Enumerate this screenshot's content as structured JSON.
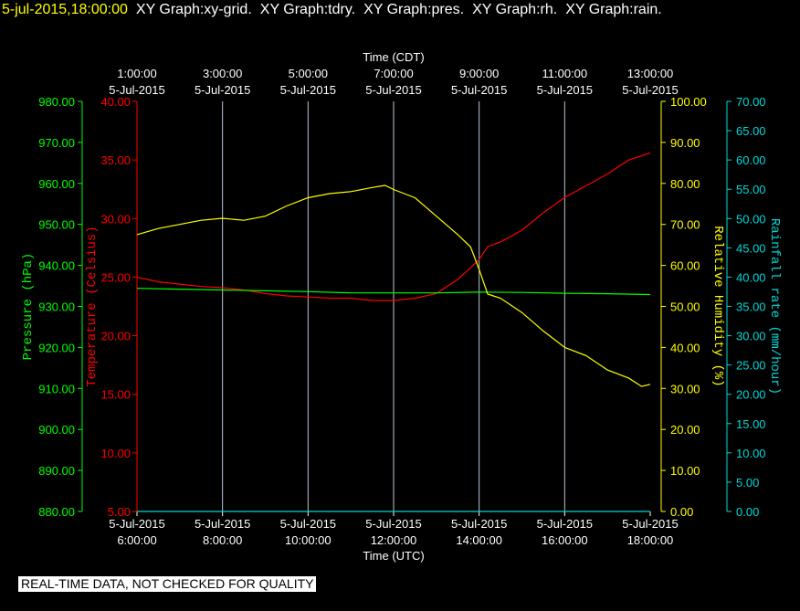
{
  "title_bar": {
    "timestamp": "5-jul-2015,18:00:00",
    "items": [
      "XY Graph:xy-grid.",
      "XY Graph:tdry.",
      "XY Graph:pres.",
      "XY Graph:rh.",
      "XY Graph:rain."
    ]
  },
  "colors": {
    "background": "#000000",
    "timestamp": "#ffff00",
    "title": "#ffffff",
    "grid": "#b8c8d8",
    "pressure": "#00ff00",
    "temperature": "#ff0000",
    "humidity": "#ffff00",
    "rain": "#00d8d8"
  },
  "disclaimer": "REAL-TIME DATA, NOT CHECKED FOR QUALITY",
  "chart_data": {
    "type": "line",
    "grid": true,
    "x_top": {
      "label": "Time (CDT)",
      "ticks": [
        {
          "t": "1:00:00",
          "d": "5-Jul-2015"
        },
        {
          "t": "3:00:00",
          "d": "5-Jul-2015"
        },
        {
          "t": "5:00:00",
          "d": "5-Jul-2015"
        },
        {
          "t": "7:00:00",
          "d": "5-Jul-2015"
        },
        {
          "t": "9:00:00",
          "d": "5-Jul-2015"
        },
        {
          "t": "11:00:00",
          "d": "5-Jul-2015"
        },
        {
          "t": "13:00:00",
          "d": "5-Jul-2015"
        }
      ]
    },
    "x_bottom": {
      "label": "Time (UTC)",
      "ticks": [
        {
          "d": "5-Jul-2015",
          "t": "6:00:00"
        },
        {
          "d": "5-Jul-2015",
          "t": "8:00:00"
        },
        {
          "d": "5-Jul-2015",
          "t": "10:00:00"
        },
        {
          "d": "5-Jul-2015",
          "t": "12:00:00"
        },
        {
          "d": "5-Jul-2015",
          "t": "14:00:00"
        },
        {
          "d": "5-Jul-2015",
          "t": "16:00:00"
        },
        {
          "d": "5-Jul-2015",
          "t": "18:00:00"
        }
      ]
    },
    "xlim_hours_utc": [
      6,
      18
    ],
    "axes": {
      "pressure": {
        "label": "Pressure (hPa)",
        "ylim": [
          880,
          980
        ],
        "ticks": [
          "880.00",
          "890.00",
          "900.00",
          "910.00",
          "920.00",
          "930.00",
          "940.00",
          "950.00",
          "960.00",
          "970.00",
          "980.00"
        ]
      },
      "temperature": {
        "label": "Temperature (Celsius)",
        "ylim": [
          5,
          40
        ],
        "ticks": [
          "5.00",
          "10.00",
          "15.00",
          "20.00",
          "25.00",
          "30.00",
          "35.00",
          "40.00"
        ]
      },
      "humidity": {
        "label": "Relative Humidity (%)",
        "ylim": [
          0,
          100
        ],
        "ticks": [
          "0.00",
          "10.00",
          "20.00",
          "30.00",
          "40.00",
          "50.00",
          "60.00",
          "70.00",
          "80.00",
          "90.00",
          "100.00"
        ]
      },
      "rain": {
        "label": "Rainfall rate (mm/hour)",
        "ylim": [
          0,
          70
        ],
        "ticks": [
          "0.00",
          "5.00",
          "10.00",
          "15.00",
          "20.00",
          "25.00",
          "30.00",
          "35.00",
          "40.00",
          "45.00",
          "50.00",
          "55.00",
          "60.00",
          "65.00",
          "70.00"
        ]
      }
    },
    "series": [
      {
        "axis": "temperature",
        "x": [
          6,
          6.5,
          7,
          7.5,
          8,
          8.5,
          9,
          9.5,
          10,
          10.5,
          11,
          11.5,
          12,
          12.5,
          13,
          13.5,
          14,
          14.2,
          14.5,
          15,
          15.5,
          16,
          16.5,
          17,
          17.5,
          18
        ],
        "values": [
          25.0,
          24.6,
          24.4,
          24.2,
          24.1,
          23.9,
          23.6,
          23.4,
          23.3,
          23.2,
          23.2,
          23.0,
          23.0,
          23.2,
          23.6,
          24.8,
          26.5,
          27.6,
          28.0,
          29.0,
          30.5,
          31.8,
          32.8,
          33.8,
          35.0,
          35.6
        ]
      },
      {
        "axis": "pressure",
        "x": [
          6,
          7,
          8,
          9,
          10,
          11,
          12,
          13,
          14,
          15,
          16,
          17,
          18
        ],
        "values": [
          934.4,
          934.2,
          934.0,
          933.8,
          933.6,
          933.3,
          933.3,
          933.3,
          933.5,
          933.4,
          933.2,
          933.1,
          932.9
        ]
      },
      {
        "axis": "humidity",
        "x": [
          6,
          6.5,
          7,
          7.5,
          8,
          8.5,
          9,
          9.5,
          10,
          10.5,
          11,
          11.5,
          11.8,
          12,
          12.5,
          13,
          13.5,
          13.8,
          14,
          14.2,
          14.5,
          15,
          15.5,
          16,
          16.5,
          17,
          17.5,
          17.8,
          18
        ],
        "values": [
          67.5,
          69.0,
          70.0,
          71.0,
          71.5,
          71.0,
          72.0,
          74.5,
          76.5,
          77.5,
          78.0,
          79.0,
          79.5,
          78.5,
          76.5,
          72.0,
          67.5,
          64.5,
          59.0,
          53.0,
          52.0,
          48.5,
          44.0,
          40.0,
          38.0,
          34.5,
          32.5,
          30.5,
          31.0
        ]
      },
      {
        "axis": "rain",
        "x": [
          6,
          18
        ],
        "values": [
          0,
          0
        ]
      }
    ]
  }
}
